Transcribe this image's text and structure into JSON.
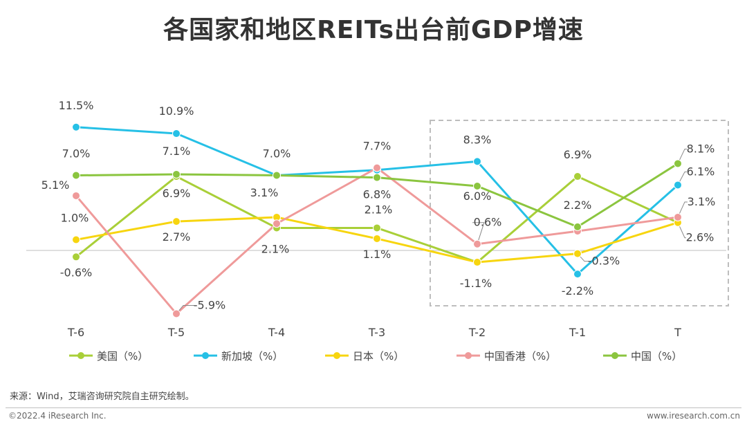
{
  "title": "各国家和地区REITs出台前GDP增速",
  "chart_data": {
    "type": "line",
    "title": "各国家和地区REITs出台前GDP增速",
    "categories": [
      "T-6",
      "T-5",
      "T-4",
      "T-3",
      "T-2",
      "T-1",
      "T"
    ],
    "unit": "%",
    "series": [
      {
        "key": "usa",
        "name": "美国（%）",
        "color": "#a9cf38",
        "values": [
          -0.6,
          6.9,
          2.1,
          2.1,
          -1.1,
          6.9,
          2.6
        ],
        "labels": [
          "-0.6%",
          "6.9%",
          "2.1%",
          "2.1%",
          "-1.1%",
          "6.9%",
          "2.6%"
        ]
      },
      {
        "key": "singapore",
        "name": "新加坡（%）",
        "color": "#26c0e6",
        "values": [
          11.5,
          10.9,
          7.0,
          7.5,
          8.3,
          -2.2,
          6.1
        ],
        "labels": [
          "11.5%",
          "10.9%",
          "",
          "",
          "8.3%",
          "-2.2%",
          "6.1%"
        ]
      },
      {
        "key": "japan",
        "name": "日本（%）",
        "color": "#f7d50f",
        "values": [
          1.0,
          2.7,
          3.1,
          1.1,
          -1.1,
          -0.3,
          2.6
        ],
        "labels": [
          "1.0%",
          "2.7%",
          "3.1%",
          "1.1%",
          "",
          "-0.3%",
          ""
        ]
      },
      {
        "key": "hongkong",
        "name": "中国香港（%）",
        "color": "#ef9a9a",
        "values": [
          5.1,
          -5.9,
          2.5,
          7.7,
          0.6,
          1.8,
          3.1
        ],
        "labels": [
          "5.1%",
          "-5.9%",
          "",
          "7.7%",
          "0.6%",
          "",
          "3.1%"
        ]
      },
      {
        "key": "china",
        "name": "中国（%）",
        "color": "#8bc53f",
        "values": [
          7.0,
          7.1,
          7.0,
          6.8,
          6.0,
          2.2,
          8.1
        ],
        "labels": [
          "7.0%",
          "7.1%",
          "7.0%",
          "6.8%",
          "6.0%",
          "2.2%",
          "8.1%"
        ]
      }
    ],
    "ylim": [
      -8,
      14
    ],
    "highlight_categories": [
      "T-2",
      "T-1",
      "T"
    ],
    "legend_position": "bottom"
  },
  "source": "来源：Wind，艾瑞咨询研究院自主研究绘制。",
  "copyright": "©2022.4 iResearch Inc.",
  "website": "www.iresearch.com.cn"
}
